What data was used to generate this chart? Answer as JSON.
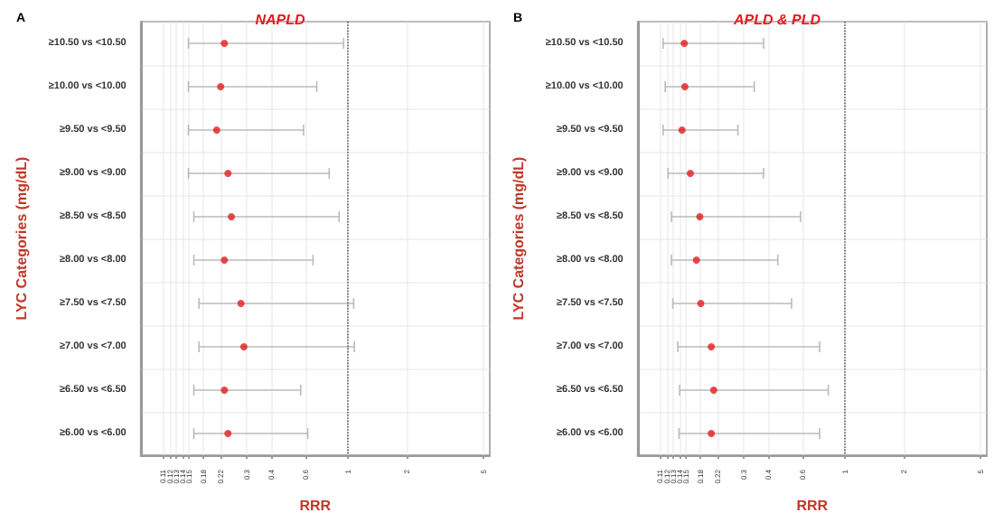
{
  "chart_data": [
    {
      "type": "scatter",
      "title": "NAPLD",
      "xlabel": "RRR",
      "ylabel": "LYC Categories (mg/dL)",
      "annotations": [
        "A"
      ],
      "categories": [
        "≥10.50 vs <10.50",
        "≥10.00 vs <10.00",
        "≥9.50 vs <9.50",
        "≥9.00 vs <9.00",
        "≥8.50 vs <8.50",
        "≥8.00 vs <8.00",
        "≥7.50 vs <7.50",
        "≥7.00 vs <7.00",
        "≥6.50 vs <6.50",
        "≥6.00 vs <6.00"
      ],
      "series": [
        {
          "color": "#e41a1c",
          "values": [
            0.23,
            0.22,
            0.21,
            0.24,
            0.25,
            0.23,
            0.28,
            0.29,
            0.23,
            0.24
          ],
          "errors": [
            [
              0.15,
              0.95
            ],
            [
              0.15,
              0.69
            ],
            [
              0.15,
              0.59
            ],
            [
              0.15,
              0.8
            ],
            [
              0.16,
              0.9
            ],
            [
              0.16,
              0.66
            ],
            [
              0.17,
              1.07
            ],
            [
              0.17,
              1.08
            ],
            [
              0.16,
              0.57
            ],
            [
              0.16,
              0.62
            ]
          ]
        }
      ],
      "orientation": "horizontal",
      "log": "x",
      "xlim": [
        0.085,
        5.4
      ],
      "xticks": [
        0.11,
        0.12,
        0.13,
        0.14,
        0.15,
        0.18,
        0.22,
        0.3,
        0.4,
        0.6,
        1,
        2,
        5
      ],
      "ref_lines": [
        {
          "axis": "x",
          "value": 1,
          "line_style": "dotted",
          "color": "#555555"
        }
      ],
      "grid": true,
      "marker": "circle"
    },
    {
      "type": "scatter",
      "title": "APLD & PLD",
      "xlabel": "RRR",
      "ylabel": "LYC Categories (mg/dL)",
      "annotations": [
        "B"
      ],
      "categories": [
        "≥10.50 vs <10.50",
        "≥10.00 vs <10.00",
        "≥9.50 vs <9.50",
        "≥9.00 vs <9.00",
        "≥8.50 vs <8.50",
        "≥8.00 vs <8.00",
        "≥7.50 vs <7.50",
        "≥7.00 vs <7.00",
        "≥6.50 vs <6.50",
        "≥6.00 vs <6.00"
      ],
      "series": [
        {
          "color": "#e41a1c",
          "values": [
            0.148,
            0.149,
            0.144,
            0.159,
            0.178,
            0.171,
            0.18,
            0.204,
            0.21,
            0.204
          ],
          "errors": [
            [
              0.115,
              0.38
            ],
            [
              0.118,
              0.34
            ],
            [
              0.115,
              0.28
            ],
            [
              0.122,
              0.38
            ],
            [
              0.127,
              0.59
            ],
            [
              0.127,
              0.45
            ],
            [
              0.129,
              0.53
            ],
            [
              0.137,
              0.74
            ],
            [
              0.14,
              0.82
            ],
            [
              0.139,
              0.74
            ]
          ]
        }
      ],
      "orientation": "horizontal",
      "log": "x",
      "xlim": [
        0.085,
        5.4
      ],
      "xticks": [
        0.11,
        0.12,
        0.13,
        0.14,
        0.15,
        0.18,
        0.22,
        0.3,
        0.4,
        0.6,
        1,
        2,
        5
      ],
      "ref_lines": [
        {
          "axis": "x",
          "value": 1,
          "line_style": "dotted",
          "color": "#555555"
        }
      ],
      "grid": true,
      "marker": "circle"
    }
  ]
}
